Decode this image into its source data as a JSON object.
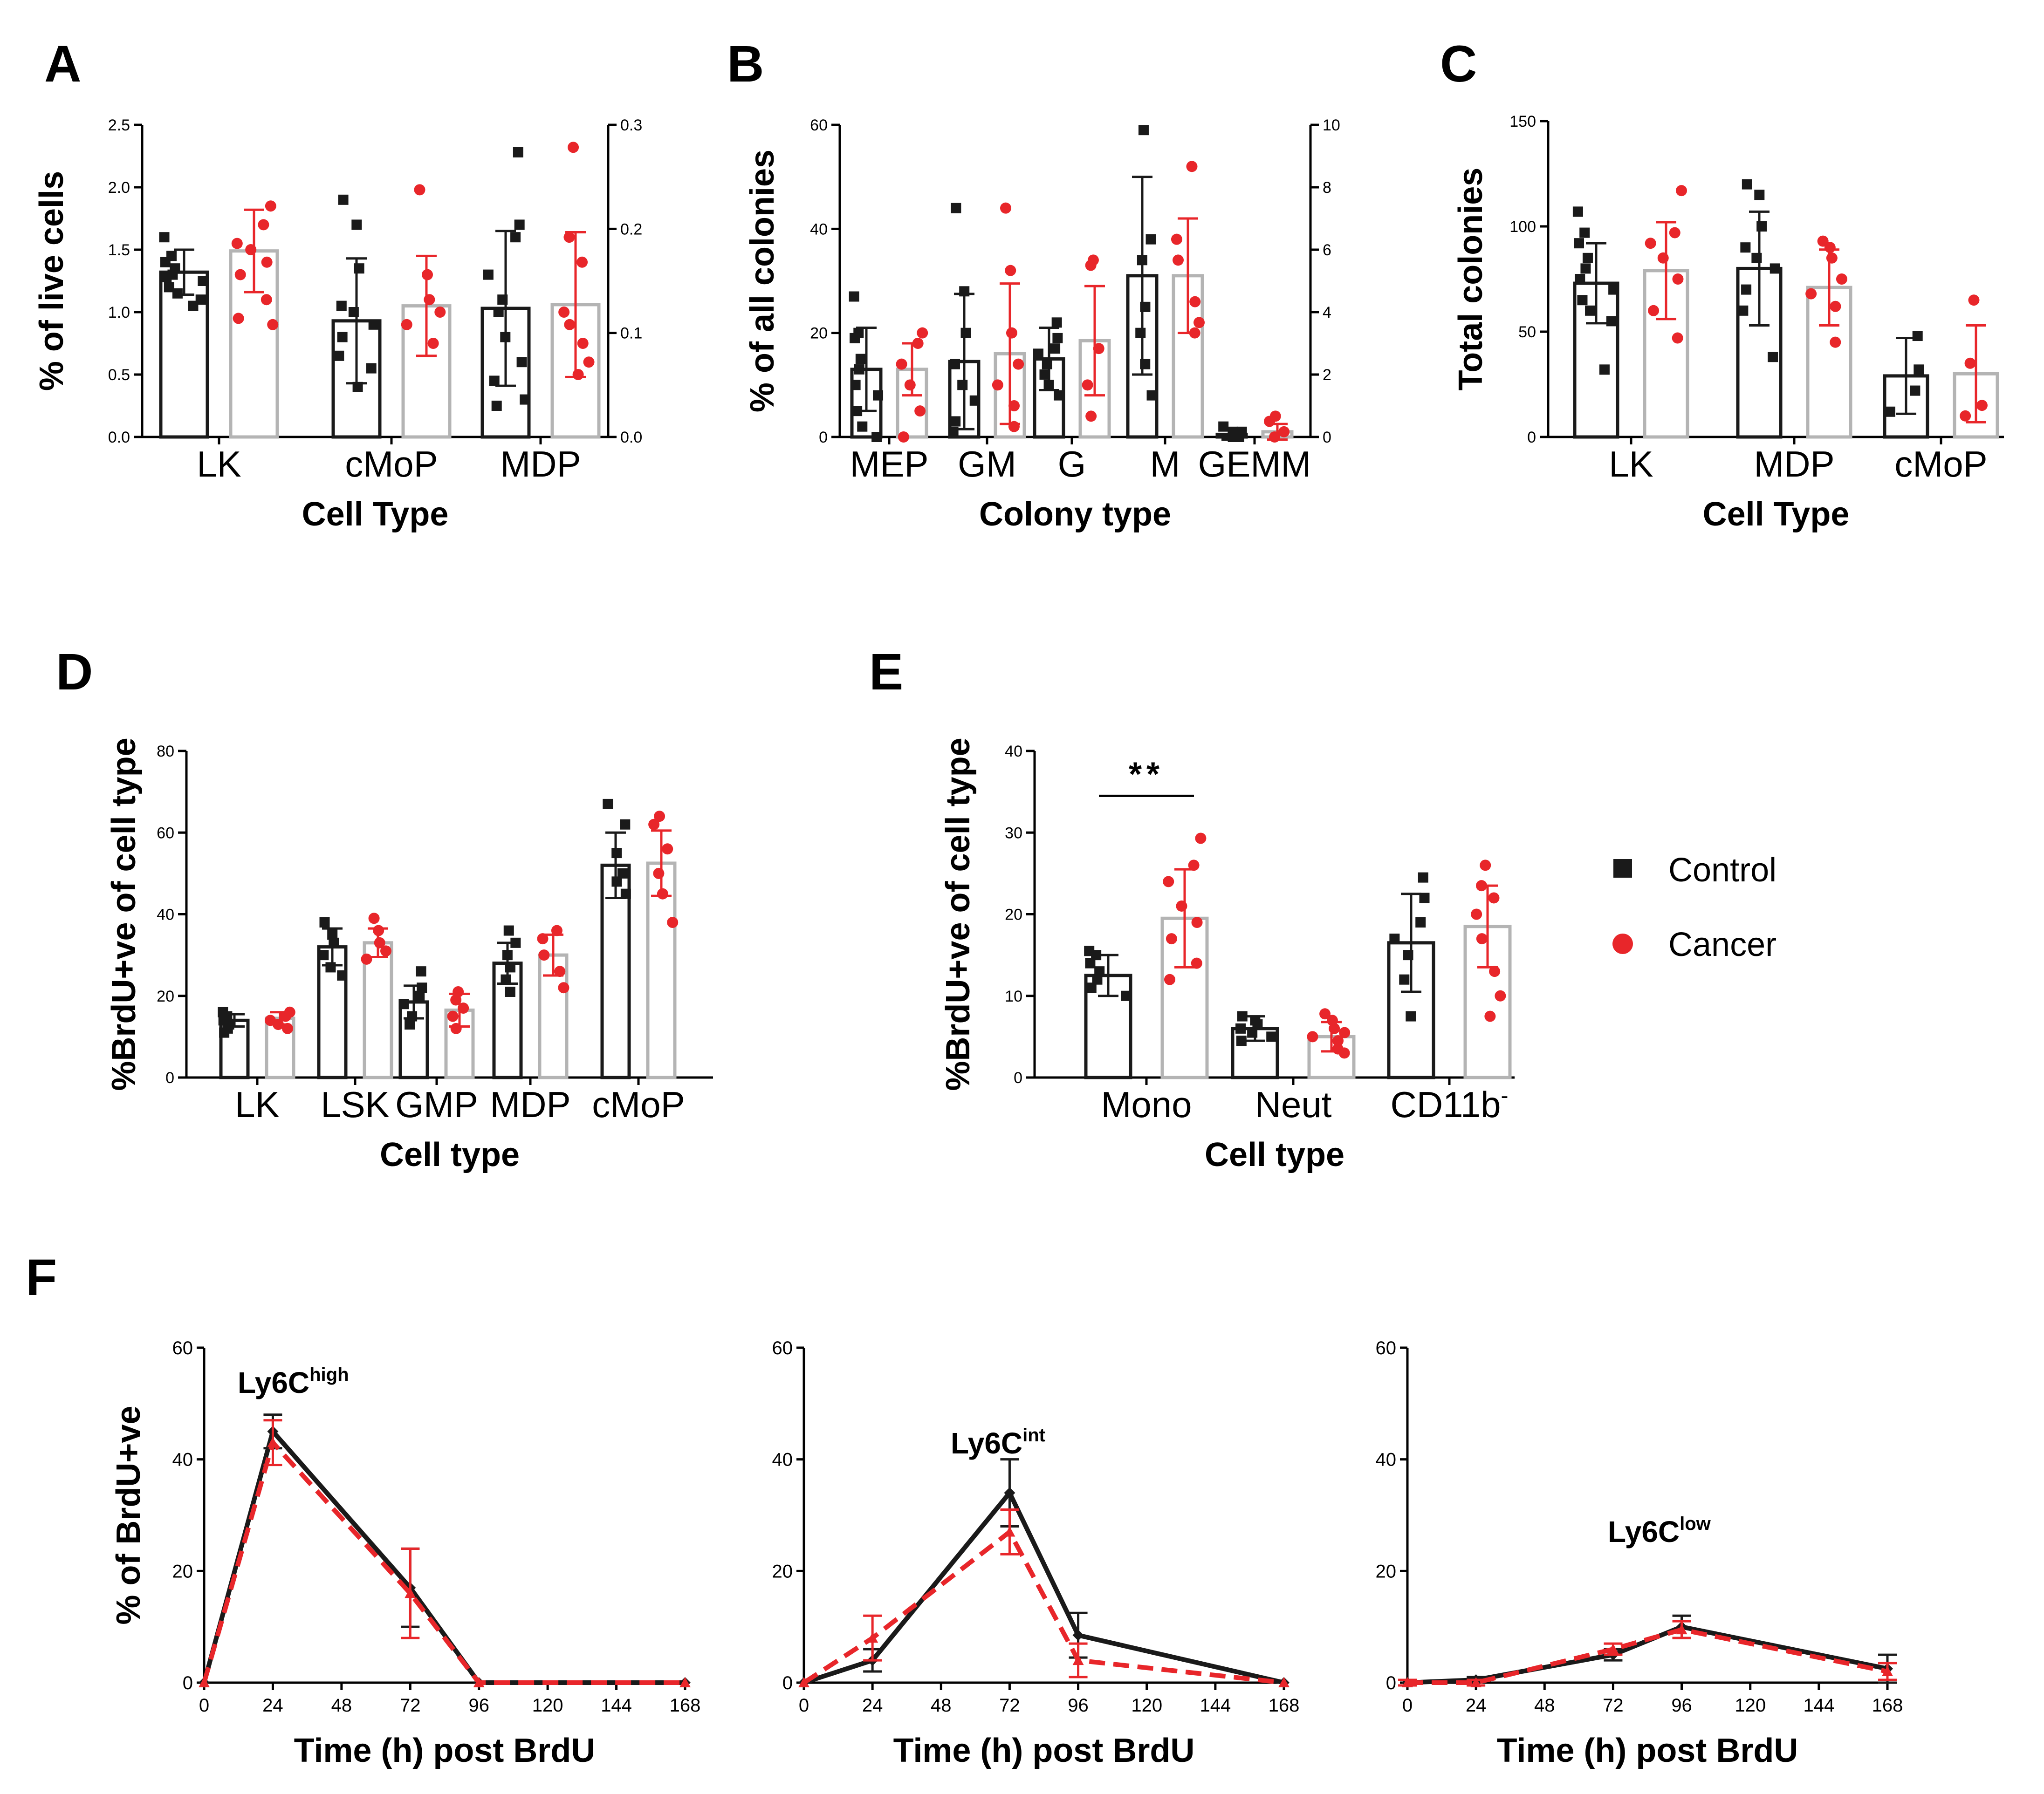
{
  "colors": {
    "control": "#1a1a1a",
    "cancer": "#e8262a",
    "cancer_bar": "#b4b4b4"
  },
  "legend": [
    {
      "label": "Control",
      "color": "#1a1a1a",
      "marker": "square"
    },
    {
      "label": "Cancer",
      "color": "#e8262a",
      "marker": "circle"
    }
  ],
  "chart_data": [
    {
      "id": "A",
      "panel_label": "A",
      "type": "bar",
      "xlabel": "Cell Type",
      "ylabel": "% of live cells",
      "categories": [
        "LK",
        "cMoP",
        "MDP"
      ],
      "ylim": [
        0,
        2.5
      ],
      "yticks": [
        "0.0",
        "0.5",
        "1.0",
        "1.5",
        "2.0",
        "2.5"
      ],
      "y2lim": [
        0,
        0.3
      ],
      "y2ticks": [
        "0.0",
        "0.1",
        "0.2",
        "0.3"
      ],
      "series": [
        {
          "name": "Control",
          "values": [
            1.32,
            0.93,
            1.03
          ],
          "errors": [
            0.18,
            0.5,
            0.62
          ],
          "points": [
            [
              1.6,
              1.45,
              1.4,
              1.35,
              1.3,
              1.28,
              1.25,
              1.2,
              1.15,
              1.1,
              1.05
            ],
            [
              1.9,
              1.7,
              1.35,
              1.05,
              1.0,
              0.9,
              0.8,
              0.65,
              0.55,
              0.4
            ],
            [
              2.28,
              1.7,
              1.6,
              1.3,
              1.1,
              1.0,
              0.8,
              0.6,
              0.45,
              0.3,
              0.25
            ]
          ]
        },
        {
          "name": "Cancer",
          "values": [
            1.49,
            1.05,
            1.06
          ],
          "errors": [
            0.33,
            0.4,
            0.58
          ],
          "points": [
            [
              1.85,
              1.7,
              1.55,
              1.5,
              1.4,
              1.3,
              1.1,
              0.95,
              0.9
            ],
            [
              1.98,
              1.3,
              1.1,
              1.0,
              0.9,
              0.75
            ],
            [
              2.32,
              1.6,
              1.4,
              1.0,
              0.9,
              0.75,
              0.6,
              0.5
            ]
          ]
        }
      ]
    },
    {
      "id": "B",
      "panel_label": "B",
      "type": "bar",
      "xlabel": "Colony type",
      "ylabel": "% of  all colonies",
      "categories": [
        "MEP",
        "GM",
        "G",
        "M",
        "GEMM"
      ],
      "ylim": [
        0,
        60
      ],
      "yticks": [
        "0",
        "20",
        "40",
        "60"
      ],
      "y2lim": [
        0,
        10
      ],
      "y2ticks": [
        "0",
        "2",
        "4",
        "6",
        "8",
        "10"
      ],
      "series": [
        {
          "name": "Control",
          "values": [
            13,
            14.5,
            15,
            31,
            0.5
          ],
          "errors": [
            8,
            13,
            6,
            19,
            1
          ],
          "points": [
            [
              27,
              20,
              19,
              15,
              13,
              10,
              8,
              5,
              2,
              0
            ],
            [
              44,
              28,
              20,
              14,
              10,
              7,
              3,
              1
            ],
            [
              22,
              19,
              17,
              16,
              14,
              12,
              10,
              8
            ],
            [
              59,
              38,
              34,
              25,
              20,
              14,
              8
            ],
            [
              2,
              1,
              1,
              0,
              0
            ]
          ]
        },
        {
          "name": "Cancer",
          "values": [
            13,
            16,
            18.5,
            31,
            1
          ],
          "errors": [
            5,
            13.5,
            10.5,
            11,
            1.5
          ],
          "points": [
            [
              20,
              18,
              14,
              10,
              5,
              0
            ],
            [
              44,
              32,
              20,
              14,
              10,
              6,
              2
            ],
            [
              34,
              33,
              17,
              10,
              4
            ],
            [
              52,
              38,
              34,
              26,
              22,
              20
            ],
            [
              4,
              3,
              1,
              0
            ]
          ]
        }
      ]
    },
    {
      "id": "C",
      "panel_label": "C",
      "type": "bar",
      "xlabel": "Cell Type",
      "ylabel": "Total colonies",
      "categories": [
        "LK",
        "MDP",
        "cMoP"
      ],
      "ylim": [
        0,
        150
      ],
      "yticks": [
        "0",
        "50",
        "100",
        "150"
      ],
      "series": [
        {
          "name": "Control",
          "values": [
            73,
            80,
            29
          ],
          "errors": [
            19,
            27,
            18
          ],
          "points": [
            [
              107,
              97,
              92,
              85,
              80,
              75,
              70,
              65,
              60,
              55,
              32
            ],
            [
              120,
              115,
              100,
              90,
              85,
              80,
              70,
              60,
              38
            ],
            [
              48,
              32,
              22,
              12
            ]
          ]
        },
        {
          "name": "Cancer",
          "values": [
            79,
            71,
            30
          ],
          "errors": [
            23,
            18,
            23
          ],
          "points": [
            [
              117,
              97,
              92,
              85,
              75,
              60,
              47
            ],
            [
              93,
              90,
              85,
              75,
              68,
              62,
              45
            ],
            [
              65,
              35,
              15,
              10
            ]
          ]
        }
      ]
    },
    {
      "id": "D",
      "panel_label": "D",
      "type": "bar",
      "xlabel": "Cell type",
      "ylabel": "%BrdU+ve of cell type",
      "categories": [
        "LK",
        "LSK",
        "GMP",
        "MDP",
        "cMoP"
      ],
      "ylim": [
        0,
        80
      ],
      "yticks": [
        "0",
        "20",
        "40",
        "60",
        "80"
      ],
      "series": [
        {
          "name": "Control",
          "values": [
            14,
            32,
            18.5,
            28,
            52
          ],
          "errors": [
            1.5,
            4.5,
            4,
            5,
            8
          ],
          "points": [
            [
              16,
              15,
              14,
              13,
              12,
              11
            ],
            [
              38,
              35,
              33,
              30,
              27,
              25
            ],
            [
              26,
              22,
              20,
              18,
              15,
              13
            ],
            [
              36,
              33,
              30,
              27,
              24,
              21
            ],
            [
              67,
              62,
              55,
              50,
              48,
              45
            ]
          ]
        },
        {
          "name": "Cancer",
          "values": [
            14.5,
            33,
            16.5,
            30,
            52.5
          ],
          "errors": [
            1.5,
            3.5,
            4,
            5,
            8
          ],
          "points": [
            [
              16,
              15,
              14,
              13,
              12
            ],
            [
              39,
              36,
              33,
              31,
              29
            ],
            [
              21,
              19,
              17,
              15,
              12
            ],
            [
              36,
              34,
              30,
              26,
              22
            ],
            [
              64,
              62,
              56,
              50,
              45,
              38
            ]
          ]
        }
      ]
    },
    {
      "id": "E",
      "panel_label": "E",
      "type": "bar",
      "xlabel": "Cell type",
      "ylabel": "%BrdU+ve of cell type",
      "categories": [
        "Mono",
        "Neut",
        "CD11b-"
      ],
      "ylim": [
        0,
        40
      ],
      "yticks": [
        "0",
        "10",
        "20",
        "30",
        "40"
      ],
      "significance": {
        "group": "Mono",
        "label": "**"
      },
      "series": [
        {
          "name": "Control",
          "values": [
            12.5,
            6,
            16.5
          ],
          "errors": [
            2.5,
            1.5,
            6
          ],
          "points": [
            [
              15.5,
              15,
              14,
              13,
              12,
              11,
              10
            ],
            [
              7.5,
              7,
              6.5,
              6,
              5.5,
              5,
              4.5
            ],
            [
              24.5,
              22,
              19,
              17,
              15,
              12,
              7.5
            ]
          ]
        },
        {
          "name": "Cancer",
          "values": [
            19.5,
            5,
            18.5
          ],
          "errors": [
            6,
            1.8,
            5
          ],
          "points": [
            [
              29.3,
              26,
              24,
              21,
              19,
              17,
              14,
              12
            ],
            [
              7.8,
              7,
              6,
              5.5,
              5,
              4.5,
              3.5,
              3
            ],
            [
              26,
              23.5,
              22,
              20,
              17,
              13,
              10,
              7.5
            ]
          ]
        }
      ]
    },
    {
      "id": "F1",
      "panel_label": "F",
      "type": "line",
      "title": "Ly6C",
      "title_sup": "high",
      "xlabel": "Time (h) post BrdU",
      "ylabel": "% of BrdU+ve",
      "x": [
        0,
        24,
        72,
        96,
        168
      ],
      "xlim": [
        0,
        168
      ],
      "ylim": [
        0,
        60
      ],
      "xticks": [
        "0",
        "24",
        "48",
        "72",
        "96",
        "120",
        "144",
        "168"
      ],
      "yticks": [
        "0",
        "20",
        "40",
        "60"
      ],
      "series": [
        {
          "name": "Control",
          "values": [
            0,
            45,
            17,
            0,
            0
          ],
          "errors": [
            0,
            3,
            7,
            0,
            0
          ]
        },
        {
          "name": "Cancer",
          "values": [
            0,
            43,
            16,
            0,
            0
          ],
          "errors": [
            0,
            4,
            8,
            0,
            0
          ]
        }
      ]
    },
    {
      "id": "F2",
      "panel_label": "",
      "type": "line",
      "title": "Ly6C",
      "title_sup": "int",
      "xlabel": "Time (h) post BrdU",
      "ylabel": "",
      "x": [
        0,
        24,
        72,
        96,
        168
      ],
      "xlim": [
        0,
        168
      ],
      "ylim": [
        0,
        60
      ],
      "xticks": [
        "0",
        "24",
        "48",
        "72",
        "96",
        "120",
        "144",
        "168"
      ],
      "yticks": [
        "0",
        "20",
        "40",
        "60"
      ],
      "series": [
        {
          "name": "Control",
          "values": [
            0,
            4,
            34,
            8.5,
            0
          ],
          "errors": [
            0,
            2,
            6,
            4,
            0
          ]
        },
        {
          "name": "Cancer",
          "values": [
            0,
            8,
            27,
            4,
            0
          ],
          "errors": [
            0,
            4,
            4,
            3,
            0
          ]
        }
      ]
    },
    {
      "id": "F3",
      "panel_label": "",
      "type": "line",
      "title": "Ly6C",
      "title_sup": "low",
      "xlabel": "Time (h) post BrdU",
      "ylabel": "",
      "x": [
        0,
        24,
        72,
        96,
        168
      ],
      "xlim": [
        0,
        168
      ],
      "ylim": [
        0,
        60
      ],
      "xticks": [
        "0",
        "24",
        "48",
        "72",
        "96",
        "120",
        "144",
        "168"
      ],
      "yticks": [
        "0",
        "20",
        "40",
        "60"
      ],
      "series": [
        {
          "name": "Control",
          "values": [
            0,
            0.5,
            5,
            10,
            2.5
          ],
          "errors": [
            0.5,
            0.5,
            1,
            2,
            2.5
          ]
        },
        {
          "name": "Cancer",
          "values": [
            0,
            0,
            6,
            9.5,
            2
          ],
          "errors": [
            0.5,
            0.5,
            1,
            1.5,
            1.5
          ]
        }
      ]
    }
  ]
}
